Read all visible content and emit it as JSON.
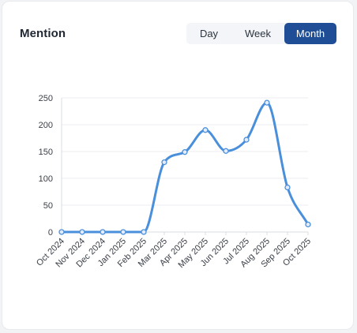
{
  "card": {
    "title": "Mention"
  },
  "period_toggle": {
    "options": [
      "Day",
      "Week",
      "Month"
    ],
    "selected": "Month"
  },
  "colors": {
    "accent": "#1f4e96",
    "series": "#4a8fdb",
    "grid": "#eceef1"
  },
  "chart_data": {
    "type": "line",
    "title": "",
    "xlabel": "",
    "ylabel": "",
    "categories": [
      "Oct 2024",
      "Nov 2024",
      "Dec 2024",
      "Jan 2025",
      "Feb 2025",
      "Mar 2025",
      "Apr 2025",
      "May 2025",
      "Jun 2025",
      "Jul 2025",
      "Aug 2025",
      "Sep 2025",
      "Oct 2025"
    ],
    "series": [
      {
        "values": [
          0,
          0,
          0,
          0,
          0,
          130,
          149,
          190,
          151,
          172,
          241,
          83,
          14
        ]
      }
    ],
    "ylim": [
      0,
      250
    ],
    "yticks": [
      0,
      50,
      100,
      150,
      200,
      250
    ],
    "grid": true,
    "legend": "none",
    "smooth": true
  }
}
